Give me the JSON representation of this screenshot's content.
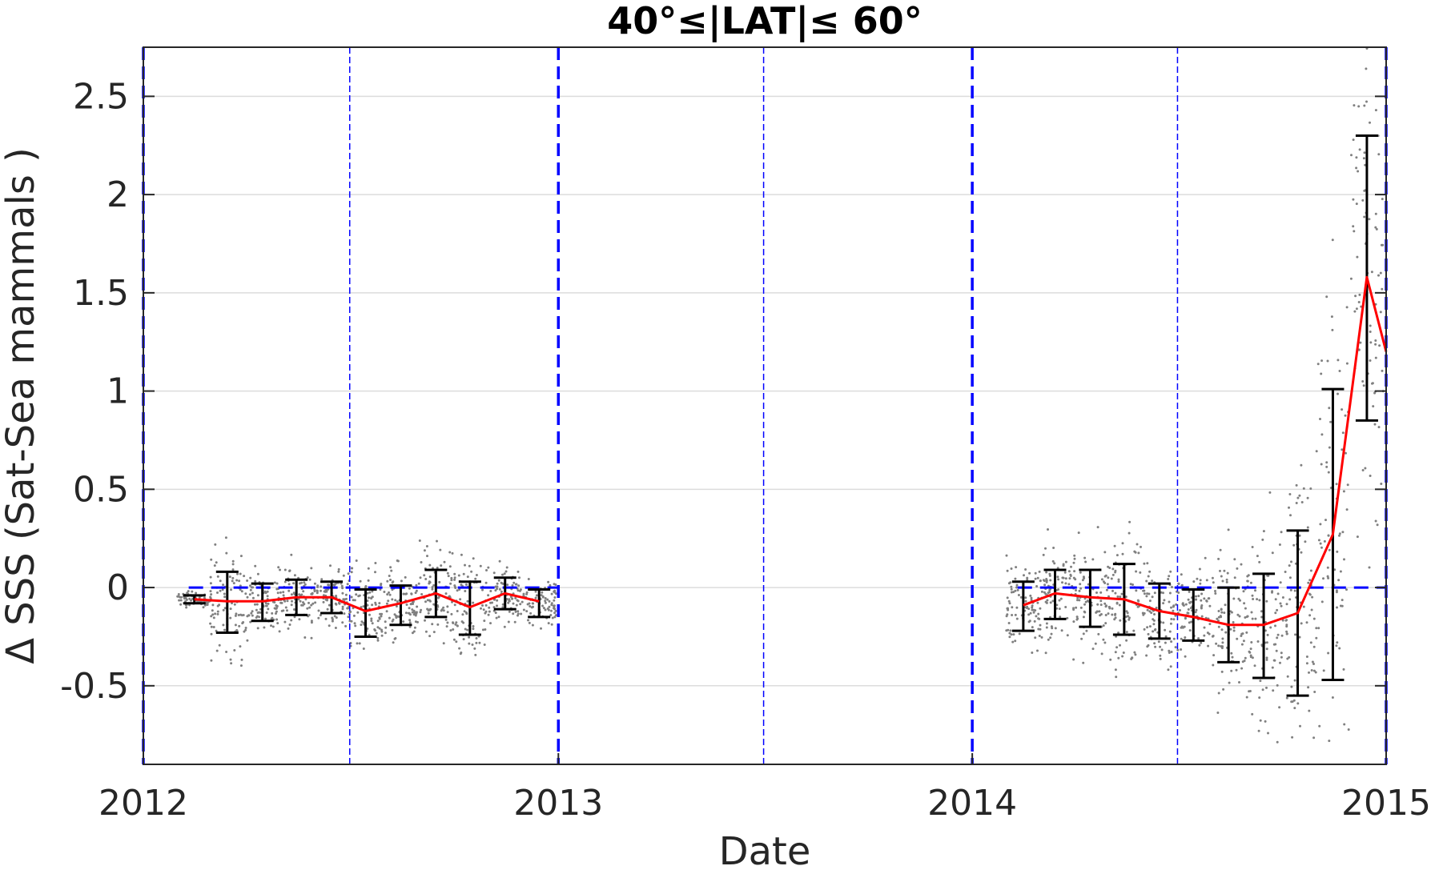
{
  "chart_data": {
    "type": "scatter",
    "title": "40°≤|LAT|≤ 60°",
    "xlabel": "Date",
    "ylabel": "Δ SSS (Sat-Sea mammals )",
    "xlim": [
      "2012-01-01",
      "2015-01-01"
    ],
    "ylim": [
      -0.9,
      2.75
    ],
    "x_ticks": [
      {
        "date": "2012-01-01",
        "label": "2012"
      },
      {
        "date": "2013-01-01",
        "label": "2013"
      },
      {
        "date": "2014-01-01",
        "label": "2014"
      },
      {
        "date": "2015-01-01",
        "label": "2015"
      }
    ],
    "y_ticks": [
      -0.5,
      0,
      0.5,
      1,
      1.5,
      2,
      2.5
    ],
    "y_tick_labels": [
      "-0.5",
      "0",
      "0.5",
      "1",
      "1.5",
      "2",
      "2.5"
    ],
    "grid": "horizontal",
    "reference_lines": {
      "zero_line": {
        "y": 0,
        "color": "#0000ff",
        "style": "dashed",
        "segments": [
          [
            "2012-02-10",
            "2013-01-01"
          ],
          [
            "2014-02-10",
            "2015-01-01"
          ]
        ]
      },
      "year_lines": {
        "dates": [
          "2012-01-01",
          "2013-01-01",
          "2014-01-01",
          "2015-01-01"
        ],
        "color": "#0000ff",
        "style": "dashed"
      },
      "midyear_lines": {
        "dates": [
          "2012-07-01",
          "2013-07-01",
          "2014-07-01"
        ],
        "color": "#0000ff",
        "style": "dashed"
      }
    },
    "series": [
      {
        "kind": "mean_line",
        "color": "#ff0000",
        "points": [
          {
            "x": "2012-02-15",
            "y": -0.06
          },
          {
            "x": "2012-03-15",
            "y": -0.07
          },
          {
            "x": "2012-04-15",
            "y": -0.07
          },
          {
            "x": "2012-05-15",
            "y": -0.05
          },
          {
            "x": "2012-06-15",
            "y": -0.05
          },
          {
            "x": "2012-07-15",
            "y": -0.12
          },
          {
            "x": "2012-08-15",
            "y": -0.08
          },
          {
            "x": "2012-09-15",
            "y": -0.03
          },
          {
            "x": "2012-10-15",
            "y": -0.1
          },
          {
            "x": "2012-11-15",
            "y": -0.03
          },
          {
            "x": "2012-12-15",
            "y": -0.07
          }
        ]
      },
      {
        "kind": "mean_line",
        "color": "#ff0000",
        "points": [
          {
            "x": "2014-02-15",
            "y": -0.09
          },
          {
            "x": "2014-03-15",
            "y": -0.03
          },
          {
            "x": "2014-04-15",
            "y": -0.05
          },
          {
            "x": "2014-05-15",
            "y": -0.06
          },
          {
            "x": "2014-06-15",
            "y": -0.12
          },
          {
            "x": "2014-07-15",
            "y": -0.15
          },
          {
            "x": "2014-08-15",
            "y": -0.19
          },
          {
            "x": "2014-09-15",
            "y": -0.19
          },
          {
            "x": "2014-10-15",
            "y": -0.13
          },
          {
            "x": "2014-11-15",
            "y": 0.27
          },
          {
            "x": "2014-12-15",
            "y": 1.58
          },
          {
            "x": "2015-01-01",
            "y": 1.2
          }
        ]
      }
    ],
    "error_bars": [
      {
        "x": "2012-02-15",
        "low": -0.08,
        "high": -0.04
      },
      {
        "x": "2012-03-15",
        "low": -0.23,
        "high": 0.08
      },
      {
        "x": "2012-04-15",
        "low": -0.17,
        "high": 0.02
      },
      {
        "x": "2012-05-15",
        "low": -0.14,
        "high": 0.04
      },
      {
        "x": "2012-06-15",
        "low": -0.13,
        "high": 0.03
      },
      {
        "x": "2012-07-15",
        "low": -0.25,
        "high": -0.01
      },
      {
        "x": "2012-08-15",
        "low": -0.19,
        "high": 0.01
      },
      {
        "x": "2012-09-15",
        "low": -0.15,
        "high": 0.09
      },
      {
        "x": "2012-10-15",
        "low": -0.24,
        "high": 0.03
      },
      {
        "x": "2012-11-15",
        "low": -0.11,
        "high": 0.05
      },
      {
        "x": "2012-12-15",
        "low": -0.15,
        "high": -0.01
      },
      {
        "x": "2014-02-15",
        "low": -0.22,
        "high": 0.03
      },
      {
        "x": "2014-03-15",
        "low": -0.16,
        "high": 0.09
      },
      {
        "x": "2014-04-15",
        "low": -0.2,
        "high": 0.09
      },
      {
        "x": "2014-05-15",
        "low": -0.24,
        "high": 0.12
      },
      {
        "x": "2014-06-15",
        "low": -0.26,
        "high": 0.02
      },
      {
        "x": "2014-07-15",
        "low": -0.27,
        "high": -0.01
      },
      {
        "x": "2014-08-15",
        "low": -0.38,
        "high": 0.0
      },
      {
        "x": "2014-09-15",
        "low": -0.46,
        "high": 0.07
      },
      {
        "x": "2014-10-15",
        "low": -0.55,
        "high": 0.29
      },
      {
        "x": "2014-11-15",
        "low": -0.47,
        "high": 1.01
      },
      {
        "x": "2014-12-15",
        "low": 0.85,
        "high": 2.3
      }
    ],
    "scatter_clusters": [
      {
        "from": "2012-02-20",
        "to": "2012-12-31",
        "color": "#808080"
      },
      {
        "from": "2014-02-05",
        "to": "2015-01-01",
        "color": "#808080"
      }
    ]
  }
}
